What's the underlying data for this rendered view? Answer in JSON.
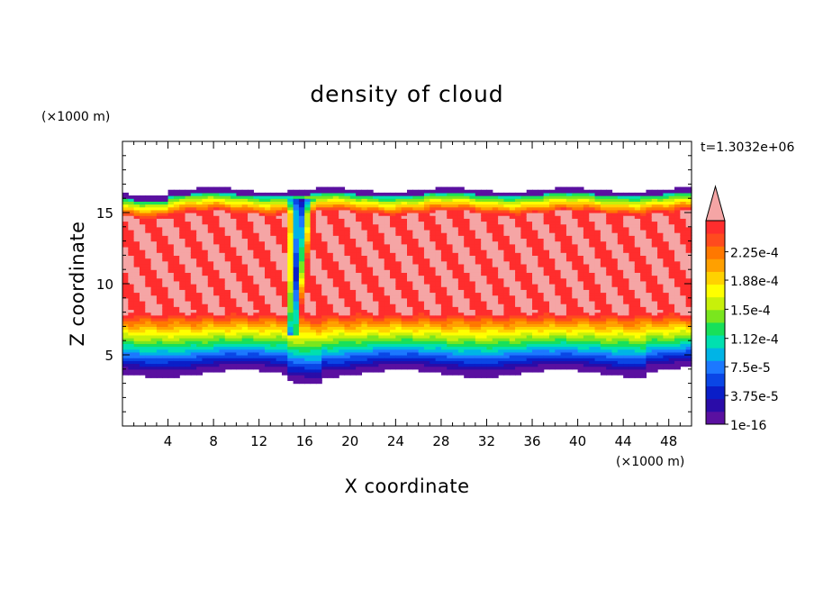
{
  "chart_data": {
    "type": "heatmap",
    "title": "density of cloud",
    "xlabel": "X coordinate",
    "ylabel": "Z coordinate",
    "x_unit": "(×1000 m)",
    "y_unit": "(×1000 m)",
    "time_label": "t=1.3032e+06",
    "xlim": [
      0,
      50
    ],
    "ylim": [
      0,
      20
    ],
    "x_ticks": [
      4,
      8,
      12,
      16,
      20,
      24,
      28,
      32,
      36,
      40,
      44,
      48
    ],
    "y_ticks": [
      5,
      10,
      15
    ],
    "colorbar": {
      "labels": [
        {
          "text": "2.25e-4",
          "value": 0.000225
        },
        {
          "text": "1.88e-4",
          "value": 0.000188
        },
        {
          "text": "1.5e-4",
          "value": 0.00015
        },
        {
          "text": "1.12e-4",
          "value": 0.000112
        },
        {
          "text": "7.5e-5",
          "value": 7.5e-05
        },
        {
          "text": "3.75e-5",
          "value": 3.75e-05
        },
        {
          "text": "1e-16",
          "value": 1e-16
        }
      ],
      "colors": [
        "#5a10a0",
        "#2a0ca8",
        "#0a1ec8",
        "#0a46e6",
        "#1c78ff",
        "#00b4e6",
        "#00e0b0",
        "#18e05a",
        "#7ae61e",
        "#c8f00a",
        "#ffff00",
        "#ffd200",
        "#ffa000",
        "#ff7800",
        "#ff4b1e",
        "#ff2d2d",
        "#f5a5a5"
      ]
    },
    "field": {
      "cloud_base_z": 3.7,
      "cloud_top_z": 16.6,
      "max_value": 0.000255,
      "plume_x": 15.2
    }
  }
}
